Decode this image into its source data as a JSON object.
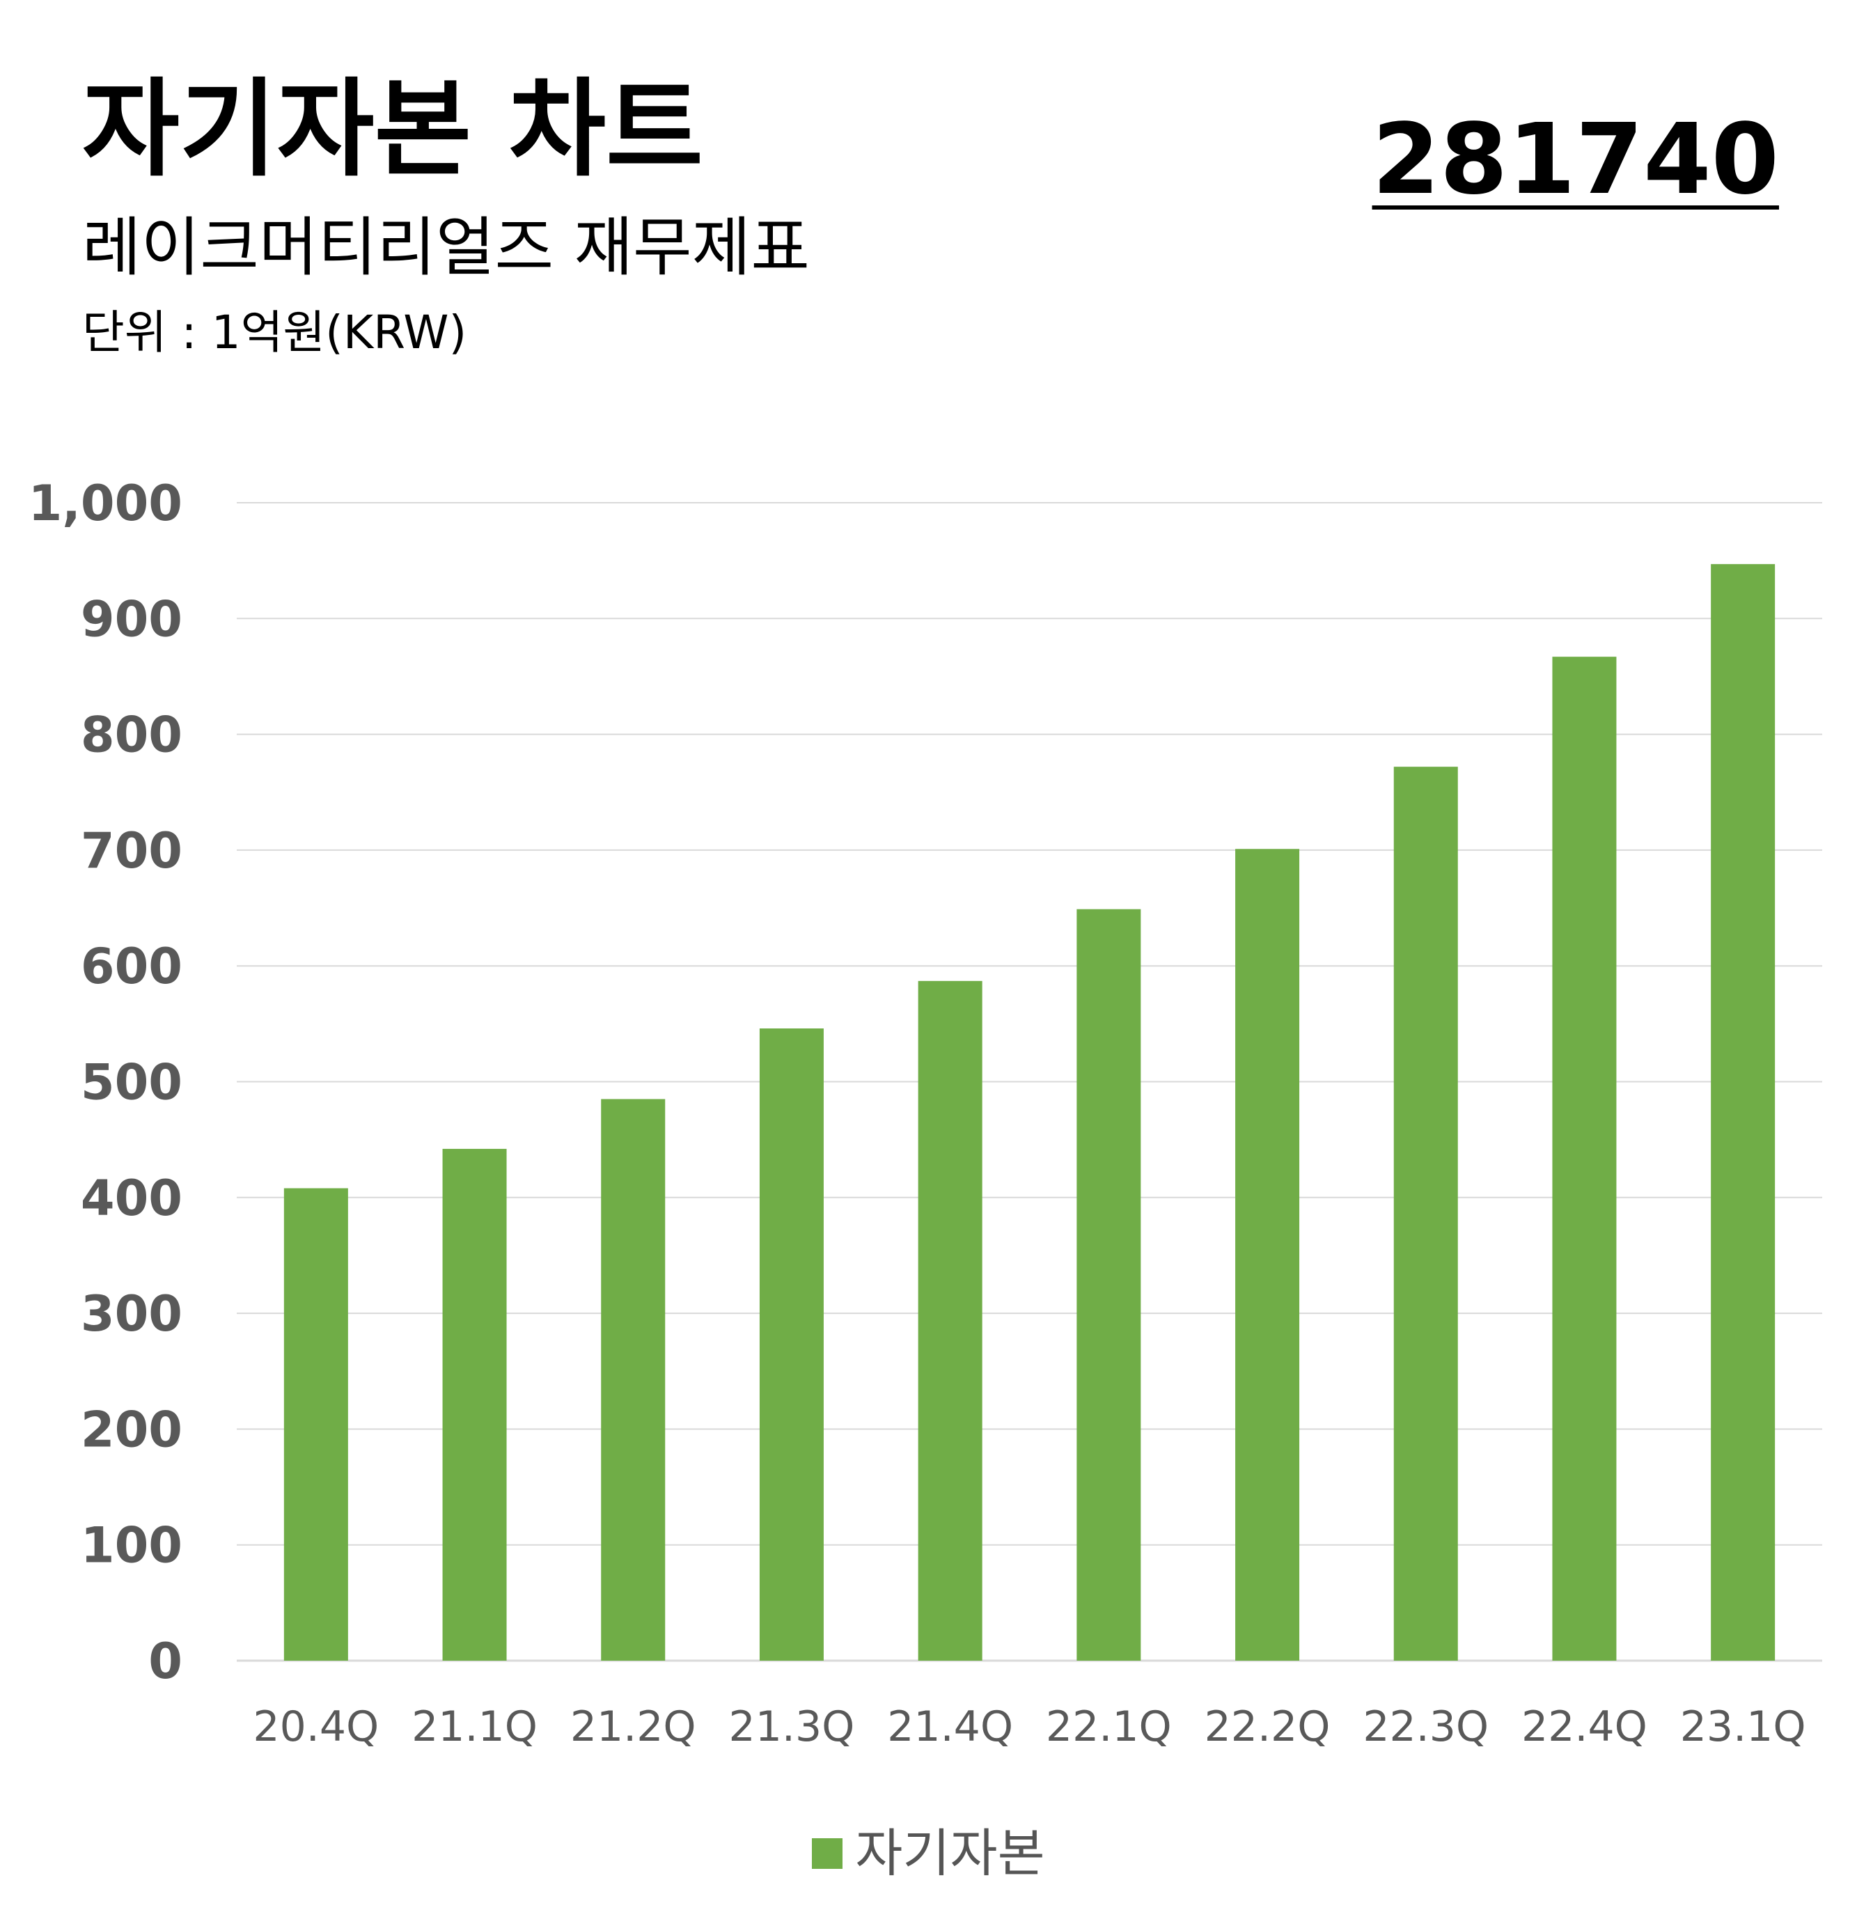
{
  "header": {
    "title": "자기자본 차트",
    "code": "281740",
    "subtitle": "레이크머티리얼즈 재무제표",
    "unit": "단위 : 1억원(KRW)"
  },
  "colors": {
    "bar": "#70ad47",
    "grid": "#d9d9d9",
    "axis_text": "#595959"
  },
  "chart_data": {
    "type": "bar",
    "categories": [
      "20.4Q",
      "21.1Q",
      "21.2Q",
      "21.3Q",
      "21.4Q",
      "22.1Q",
      "22.2Q",
      "22.3Q",
      "22.4Q",
      "23.1Q"
    ],
    "series": [
      {
        "name": "자기자본",
        "values": [
          408,
          442,
          485,
          546,
          587,
          649,
          701,
          772,
          867,
          947
        ]
      }
    ],
    "ylim": [
      0,
      1000
    ],
    "yticks": [
      0,
      100,
      200,
      300,
      400,
      500,
      600,
      700,
      800,
      900,
      1000
    ],
    "ytick_labels": [
      "0",
      "100",
      "200",
      "300",
      "400",
      "500",
      "600",
      "700",
      "800",
      "900",
      "1,000"
    ],
    "grid": true,
    "legend": "bottom-center"
  }
}
